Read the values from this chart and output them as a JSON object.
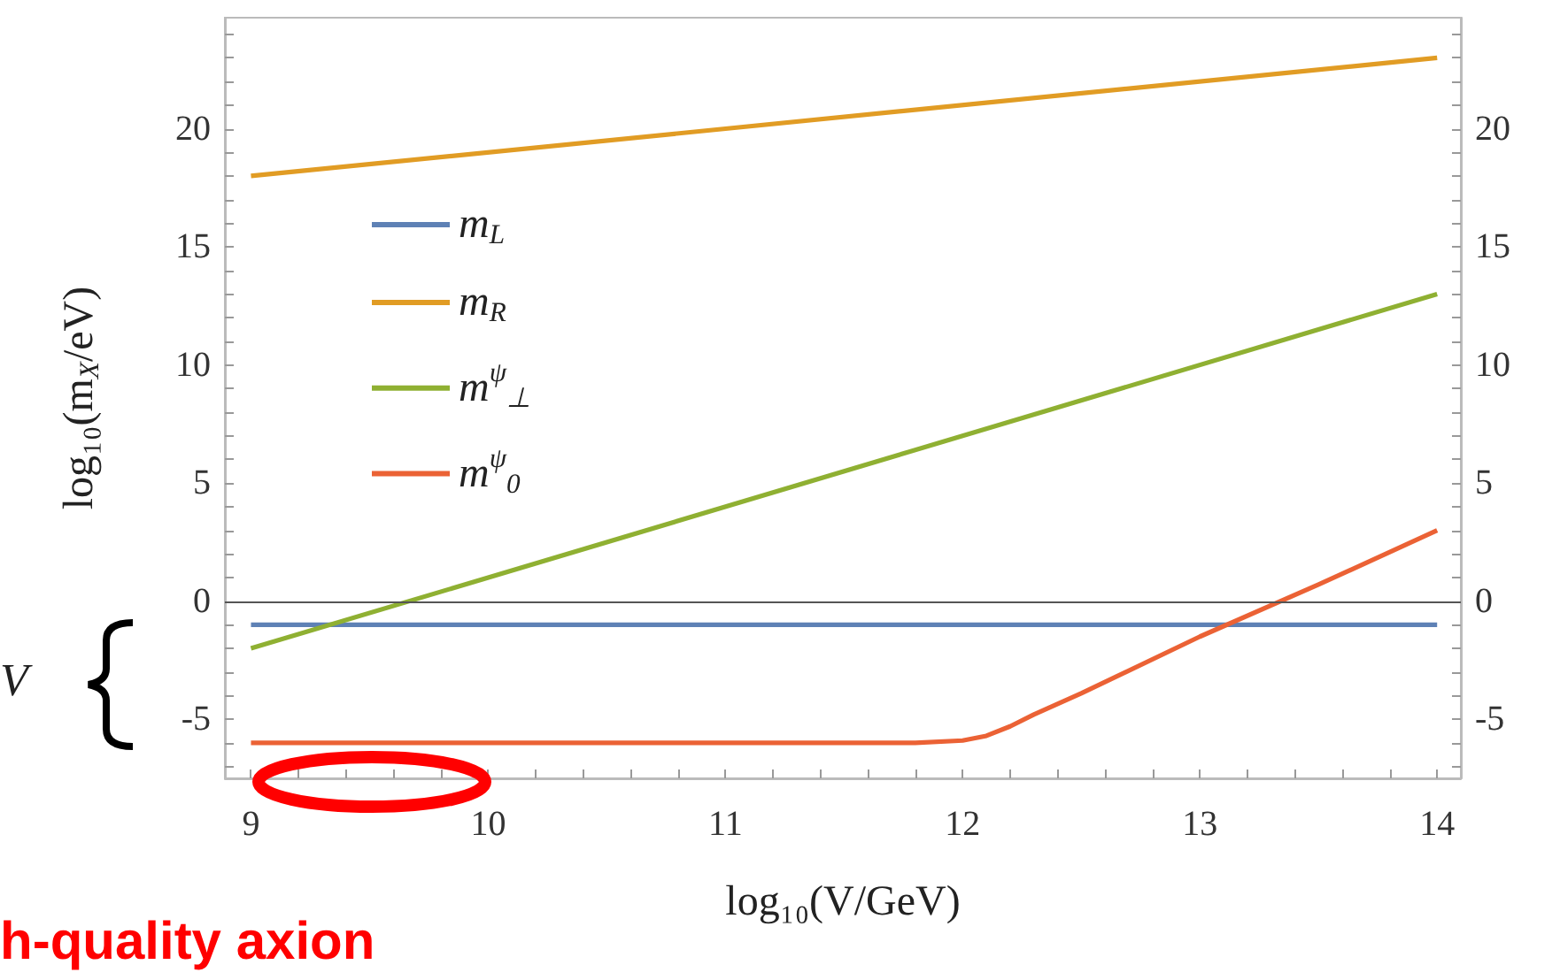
{
  "chart_data": {
    "type": "line",
    "xlabel": "log₁₀(V/GeV)",
    "ylabel": "log₁₀(m$_{X}$/eV)",
    "xlim": [
      8.89,
      14.1
    ],
    "ylim": [
      -7.5,
      24.7
    ],
    "y2lim": [
      -7.5,
      24.7
    ],
    "xticks": [
      9,
      {
        "value": 9.2,
        "label": null
      },
      {
        "value": 9.4,
        "label": null
      },
      {
        "value": 9.6,
        "label": null
      },
      {
        "value": 9.8,
        "label": null
      },
      10,
      {
        "value": 10.2,
        "label": null
      },
      {
        "value": 10.4,
        "label": null
      },
      {
        "value": 10.6,
        "label": null
      },
      {
        "value": 10.8,
        "label": null
      },
      11,
      {
        "value": 11.2,
        "label": null
      },
      {
        "value": 11.4,
        "label": null
      },
      {
        "value": 11.6,
        "label": null
      },
      {
        "value": 11.8,
        "label": null
      },
      12,
      {
        "value": 12.2,
        "label": null
      },
      {
        "value": 12.4,
        "label": null
      },
      {
        "value": 12.6,
        "label": null
      },
      {
        "value": 12.8,
        "label": null
      },
      13,
      {
        "value": 13.2,
        "label": null
      },
      {
        "value": 13.4,
        "label": null
      },
      {
        "value": 13.6,
        "label": null
      },
      {
        "value": 13.8,
        "label": null
      },
      14
    ],
    "yticks": [
      {
        "value": -7,
        "label": null
      },
      {
        "value": -6,
        "label": null
      },
      -5,
      {
        "value": -4,
        "label": null
      },
      {
        "value": -3,
        "label": null
      },
      {
        "value": -2,
        "label": null
      },
      {
        "value": -1,
        "label": null
      },
      0,
      {
        "value": 1,
        "label": null
      },
      {
        "value": 2,
        "label": null
      },
      {
        "value": 3,
        "label": null
      },
      {
        "value": 4,
        "label": null
      },
      5,
      {
        "value": 6,
        "label": null
      },
      {
        "value": 7,
        "label": null
      },
      {
        "value": 8,
        "label": null
      },
      {
        "value": 9,
        "label": null
      },
      10,
      {
        "value": 11,
        "label": null
      },
      {
        "value": 12,
        "label": null
      },
      {
        "value": 13,
        "label": null
      },
      {
        "value": 14,
        "label": null
      },
      15,
      {
        "value": 16,
        "label": null
      },
      {
        "value": 17,
        "label": null
      },
      {
        "value": 18,
        "label": null
      },
      {
        "value": 19,
        "label": null
      },
      20,
      {
        "value": 21,
        "label": null
      },
      {
        "value": 22,
        "label": null
      },
      {
        "value": 23,
        "label": null
      },
      {
        "value": 24,
        "label": null
      }
    ],
    "y2ticks": [
      {
        "value": -7,
        "label": null
      },
      {
        "value": -6,
        "label": null
      },
      -5,
      {
        "value": -4,
        "label": null
      },
      {
        "value": -3,
        "label": null
      },
      {
        "value": -2,
        "label": null
      },
      {
        "value": -1,
        "label": null
      },
      0,
      {
        "value": 1,
        "label": null
      },
      {
        "value": 2,
        "label": null
      },
      {
        "value": 3,
        "label": null
      },
      {
        "value": 4,
        "label": null
      },
      5,
      {
        "value": 6,
        "label": null
      },
      {
        "value": 7,
        "label": null
      },
      {
        "value": 8,
        "label": null
      },
      {
        "value": 9,
        "label": null
      },
      10,
      {
        "value": 11,
        "label": null
      },
      {
        "value": 12,
        "label": null
      },
      {
        "value": 13,
        "label": null
      },
      {
        "value": 14,
        "label": null
      },
      15,
      {
        "value": 16,
        "label": null
      },
      {
        "value": 17,
        "label": null
      },
      {
        "value": 18,
        "label": null
      },
      {
        "value": 19,
        "label": null
      },
      20,
      {
        "value": 21,
        "label": null
      },
      {
        "value": 22,
        "label": null
      },
      {
        "value": 23,
        "label": null
      },
      {
        "value": 24,
        "label": null
      }
    ],
    "series": [
      {
        "name": "m$_{L}$",
        "color": "#5e81b5",
        "x": [
          9,
          14
        ],
        "values": [
          -1,
          -1
        ]
      },
      {
        "name": "m$_{R}$",
        "color": "#e19c24",
        "x": [
          9,
          14
        ],
        "values": [
          18,
          23
        ]
      },
      {
        "name": "m$^{ψ}$$_{⊥}$",
        "color": "#8fb032",
        "x": [
          9,
          14
        ],
        "values": [
          -2,
          13
        ]
      },
      {
        "name": "m$^{ψ}$$_{0}$",
        "color": "#eb6235",
        "x": [
          9,
          11.8,
          12,
          12.1,
          12.2,
          12.3,
          12.5,
          13,
          13.5,
          14
        ],
        "values": [
          -6,
          -6,
          -5.9,
          -5.7,
          -5.3,
          -4.8,
          -3.9,
          -1.5,
          0.7,
          3
        ]
      }
    ],
    "ref_lines": [
      {
        "axis": "y",
        "value": 0,
        "color": "#555555"
      }
    ],
    "annotations": [
      "V",
      "h-quality axion"
    ],
    "legend": "top left",
    "grid": false,
    "marker": "none",
    "line_style": "solid"
  }
}
